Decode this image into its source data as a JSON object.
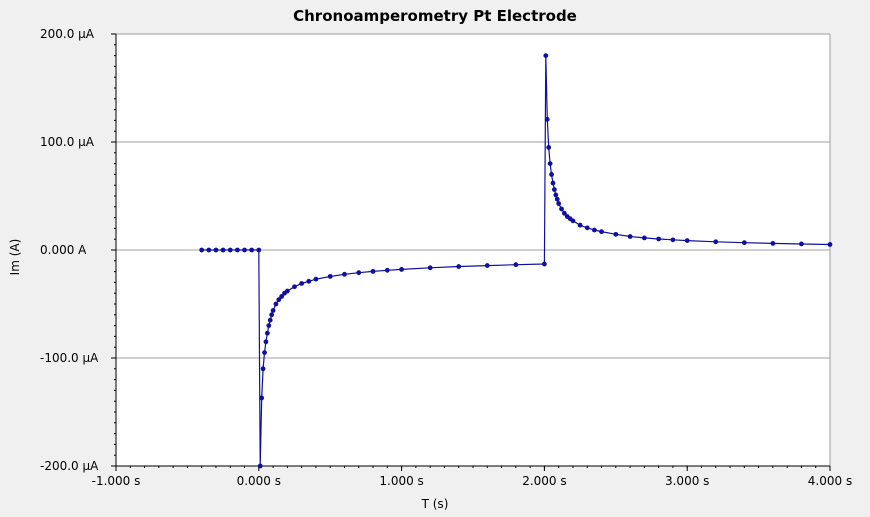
{
  "chart_data": {
    "type": "scatter",
    "title": "Chronoamperometry Pt Electrode",
    "xlabel": "T (s)",
    "ylabel": "Im (A)",
    "xlim": [
      -1.0,
      4.0
    ],
    "ylim": [
      -200.0,
      200.0
    ],
    "x_unit": "s",
    "y_unit": "µA",
    "x_ticks": [
      {
        "value": -1.0,
        "label": "-1.000 s"
      },
      {
        "value": 0.0,
        "label": "0.000 s"
      },
      {
        "value": 1.0,
        "label": "1.000 s"
      },
      {
        "value": 2.0,
        "label": "2.000 s"
      },
      {
        "value": 3.0,
        "label": "3.000 s"
      },
      {
        "value": 4.0,
        "label": "4.000 s"
      }
    ],
    "y_ticks": [
      {
        "value": 200.0,
        "label": "200.0 µA"
      },
      {
        "value": 100.0,
        "label": "100.0 µA"
      },
      {
        "value": 0.0,
        "label": "0.000 A"
      },
      {
        "value": -100.0,
        "label": "-100.0 µA"
      },
      {
        "value": -200.0,
        "label": "-200.0 µA"
      }
    ],
    "grid": "horizontal",
    "series": [
      {
        "color": "#1010a0",
        "x": [
          -0.4,
          -0.35,
          -0.3,
          -0.25,
          -0.2,
          -0.15,
          -0.1,
          -0.05,
          0.0,
          0.01,
          0.02,
          0.03,
          0.04,
          0.05,
          0.06,
          0.07,
          0.08,
          0.09,
          0.1,
          0.12,
          0.14,
          0.16,
          0.18,
          0.2,
          0.25,
          0.3,
          0.35,
          0.4,
          0.5,
          0.6,
          0.7,
          0.8,
          0.9,
          1.0,
          1.2,
          1.4,
          1.6,
          1.8,
          2.0,
          2.01,
          2.02,
          2.03,
          2.04,
          2.05,
          2.06,
          2.07,
          2.08,
          2.09,
          2.1,
          2.12,
          2.14,
          2.16,
          2.18,
          2.2,
          2.25,
          2.3,
          2.35,
          2.4,
          2.5,
          2.6,
          2.7,
          2.8,
          2.9,
          3.0,
          3.2,
          3.4,
          3.6,
          3.8,
          4.0
        ],
        "values": [
          0,
          0,
          0,
          0,
          0,
          0,
          0,
          0,
          0,
          -200,
          -137,
          -110,
          -95,
          -85,
          -77,
          -70,
          -65,
          -60,
          -56,
          -50,
          -46,
          -43,
          -40,
          -38,
          -34,
          -31,
          -29,
          -27,
          -24.5,
          -22.5,
          -21,
          -19.8,
          -18.8,
          -18,
          -16.5,
          -15.3,
          -14.4,
          -13.6,
          -13,
          180,
          121,
          95,
          80,
          70,
          62,
          56,
          51,
          47,
          43,
          38,
          34,
          31,
          29,
          27,
          23,
          20.5,
          18.5,
          17,
          14.5,
          12.5,
          11.2,
          10.2,
          9.4,
          8.7,
          7.6,
          6.8,
          6.1,
          5.6,
          5.1
        ]
      }
    ]
  }
}
